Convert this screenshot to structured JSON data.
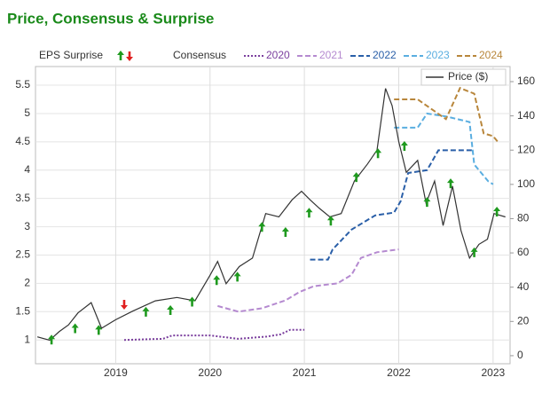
{
  "chart_data": {
    "type": "line",
    "title": "Price, Consensus & Surprise",
    "surprise_label": "EPS Surprise",
    "consensus_label": "Consensus",
    "xlim": [
      2018.15,
      2023.18
    ],
    "xticks": [
      2019,
      2020,
      2021,
      2022,
      2023
    ],
    "ylim": [
      0.58,
      5.83
    ],
    "yticks": [
      1,
      1.5,
      2,
      2.5,
      3,
      3.5,
      4,
      4.5,
      5,
      5.5
    ],
    "y2lim": [
      -4.7,
      168.8
    ],
    "y2ticks": [
      0,
      20,
      40,
      60,
      80,
      100,
      120,
      140,
      160
    ],
    "grid": true,
    "series": [
      {
        "name": "2020",
        "color": "#7b3f9e",
        "dash": "dotted",
        "x": [
          2019.09,
          2019.5,
          2019.6,
          2020.0,
          2020.3,
          2020.6,
          2020.75,
          2020.85,
          2021.0
        ],
        "values": [
          1.0,
          1.02,
          1.08,
          1.08,
          1.02,
          1.06,
          1.1,
          1.18,
          1.18
        ]
      },
      {
        "name": "2021",
        "color": "#b58ad0",
        "dash": "dashed",
        "x": [
          2020.08,
          2020.3,
          2020.55,
          2020.8,
          2020.95,
          2021.1,
          2021.35,
          2021.5,
          2021.6,
          2021.77,
          2022.0
        ],
        "values": [
          1.6,
          1.5,
          1.56,
          1.7,
          1.85,
          1.95,
          2.0,
          2.15,
          2.45,
          2.55,
          2.6
        ]
      },
      {
        "name": "2022",
        "color": "#2a5fa8",
        "dash": "dashed",
        "x": [
          2021.06,
          2021.25,
          2021.3,
          2021.5,
          2021.75,
          2021.95,
          2022.02,
          2022.1,
          2022.3,
          2022.42,
          2022.8
        ],
        "values": [
          2.42,
          2.42,
          2.6,
          2.95,
          3.2,
          3.25,
          3.45,
          3.95,
          4.0,
          4.35,
          4.35
        ]
      },
      {
        "name": "2023",
        "color": "#5aaee0",
        "dash": "dashed",
        "x": [
          2021.95,
          2022.2,
          2022.3,
          2022.5,
          2022.75,
          2022.8,
          2022.95,
          2023.0
        ],
        "values": [
          4.75,
          4.75,
          5.0,
          4.95,
          4.85,
          4.1,
          3.8,
          3.75
        ]
      },
      {
        "name": "2024",
        "color": "#b8863b",
        "dash": "dashed",
        "x": [
          2021.95,
          2022.2,
          2022.5,
          2022.65,
          2022.8,
          2022.9,
          2023.0,
          2023.05
        ],
        "values": [
          5.25,
          5.25,
          4.9,
          5.45,
          5.35,
          4.65,
          4.6,
          4.5
        ]
      },
      {
        "name": "Price ($)",
        "color": "#333333",
        "axis": "y2",
        "x": [
          2018.17,
          2018.3,
          2018.4,
          2018.5,
          2018.6,
          2018.74,
          2018.85,
          2019.0,
          2019.18,
          2019.42,
          2019.65,
          2019.84,
          2020.0,
          2020.08,
          2020.17,
          2020.31,
          2020.45,
          2020.59,
          2020.73,
          2020.87,
          2020.97,
          2021.06,
          2021.16,
          2021.27,
          2021.39,
          2021.53,
          2021.67,
          2021.77,
          2021.86,
          2021.93,
          2022.0,
          2022.08,
          2022.2,
          2022.29,
          2022.38,
          2022.47,
          2022.57,
          2022.66,
          2022.75,
          2022.85,
          2022.94,
          2023.01,
          2023.13
        ],
        "values": [
          11,
          9,
          14,
          18,
          25,
          31,
          16,
          21,
          26,
          32,
          34,
          32,
          47,
          55,
          42,
          52,
          57,
          83,
          81,
          91,
          96,
          91,
          86,
          81,
          83,
          102,
          112,
          120,
          156,
          146,
          125,
          107,
          114,
          89,
          102,
          76,
          99,
          73,
          57,
          65,
          68,
          83,
          81
        ]
      }
    ],
    "surprises": [
      {
        "direction": "up",
        "color": "#1f9a1f",
        "x": [
          2018.32,
          2018.57,
          2018.82,
          2019.32,
          2019.58,
          2019.81,
          2020.07,
          2020.29,
          2020.55,
          2020.8,
          2021.05,
          2021.28,
          2021.55,
          2021.78,
          2022.06,
          2022.3,
          2022.55,
          2022.8,
          2023.04
        ],
        "values": [
          1.0,
          1.2,
          1.17,
          1.49,
          1.52,
          1.67,
          2.05,
          2.11,
          2.99,
          2.9,
          3.24,
          3.1,
          3.87,
          4.29,
          4.42,
          3.43,
          3.76,
          2.54,
          3.26
        ]
      },
      {
        "direction": "down",
        "color": "#e02020",
        "x": [
          2019.09
        ],
        "values": [
          1.63
        ]
      }
    ]
  }
}
